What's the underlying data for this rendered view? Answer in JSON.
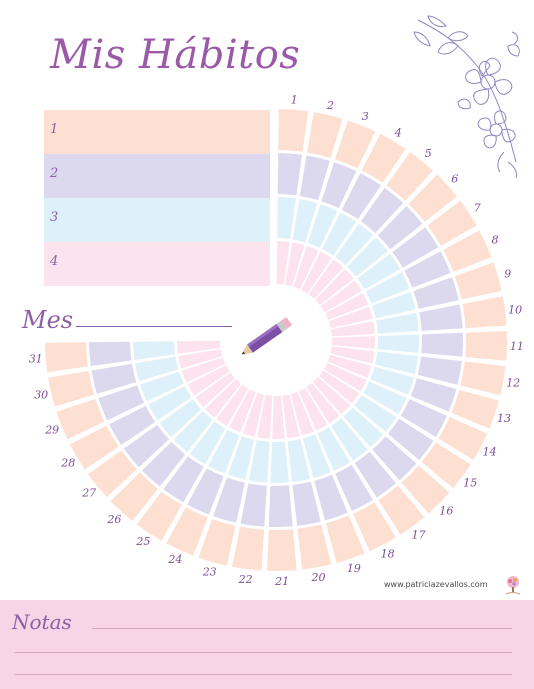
{
  "title": "Mis Hábitos",
  "habits": [
    {
      "label": "1",
      "color": "#fde0d2"
    },
    {
      "label": "2",
      "color": "#dcd8ee"
    },
    {
      "label": "3",
      "color": "#def1fa"
    },
    {
      "label": "4",
      "color": "#fde3ed"
    }
  ],
  "month": {
    "label": "Mes"
  },
  "days": [
    "1",
    "2",
    "3",
    "4",
    "5",
    "6",
    "7",
    "8",
    "9",
    "10",
    "11",
    "12",
    "13",
    "14",
    "15",
    "16",
    "17",
    "18",
    "19",
    "20",
    "21",
    "22",
    "23",
    "24",
    "25",
    "26",
    "27",
    "28",
    "29",
    "30",
    "31"
  ],
  "website": "www.patriciazevallos.com",
  "notes": {
    "label": "Notas"
  },
  "icons": {
    "pencil": "pencil-icon",
    "flowers": "floral-decoration",
    "logo": "brand-logo-icon"
  },
  "colors": {
    "accent": "#8e5fa6",
    "notes_bg": "#f9d4e6"
  }
}
